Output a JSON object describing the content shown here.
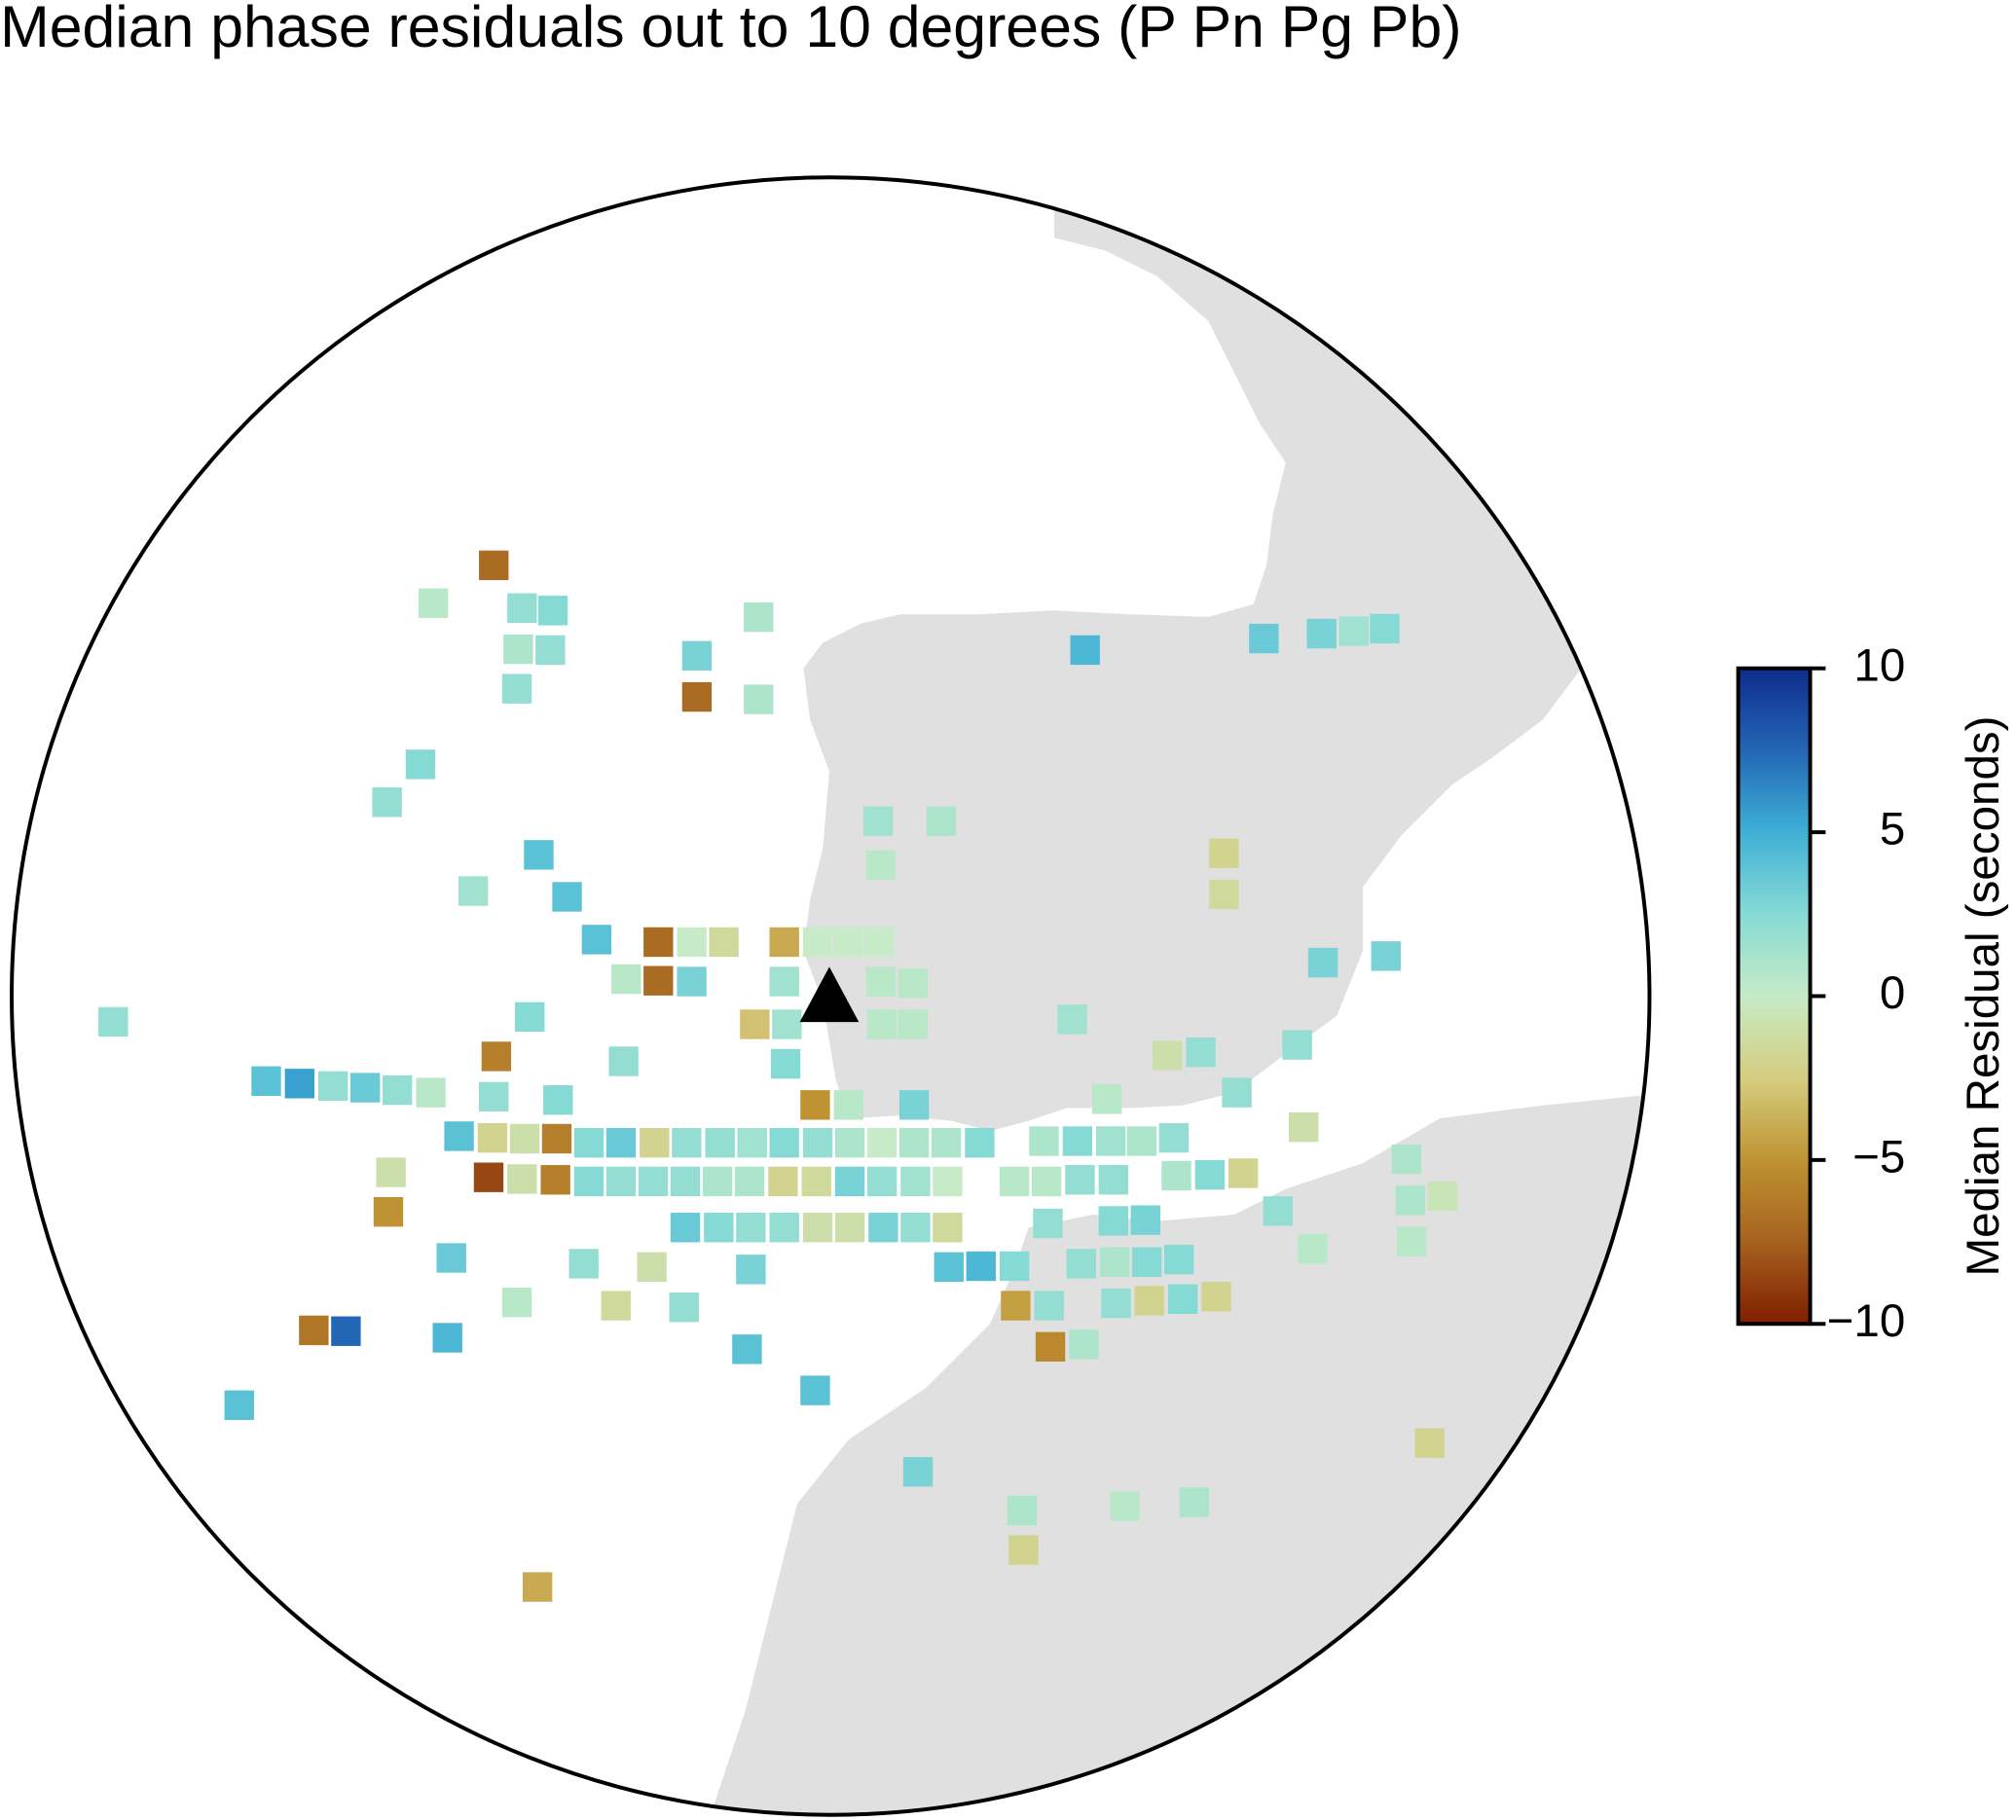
{
  "chart_data": {
    "type": "map",
    "title": "Median phase residuals out to 10 degrees (P Pn Pg Pb)",
    "station": {
      "lon": -9.1,
      "lat": 38.7
    },
    "colorbar": {
      "label": "Median Residual (seconds)",
      "lim": [
        -10,
        10
      ],
      "ticks": [
        10,
        5,
        0,
        {
          "value": -5,
          "label": "−5"
        },
        {
          "value": -10,
          "label": "−10"
        }
      ]
    },
    "colormap": [
      "#801e00",
      "#a5621f",
      "#bf9333",
      "#d5cd80",
      "#c6ebc6",
      "#86dad6",
      "#3fb0d5",
      "#2366b5",
      "#0e2d8c"
    ],
    "points": [
      {
        "lon": -14.32,
        "lat": 43.94,
        "value": -7
      },
      {
        "lon": -15.26,
        "lat": 43.48,
        "value": 0.5
      },
      {
        "lon": -13.88,
        "lat": 43.42,
        "value": 2
      },
      {
        "lon": -13.4,
        "lat": 43.39,
        "value": 2.5
      },
      {
        "lon": -10.2,
        "lat": 43.31,
        "value": 1
      },
      {
        "lon": -13.94,
        "lat": 42.92,
        "value": 1
      },
      {
        "lon": -13.44,
        "lat": 42.91,
        "value": 2
      },
      {
        "lon": -11.16,
        "lat": 42.84,
        "value": 3
      },
      {
        "lon": -13.96,
        "lat": 42.44,
        "value": 2
      },
      {
        "lon": -11.16,
        "lat": 42.34,
        "value": -7
      },
      {
        "lon": -10.2,
        "lat": 42.31,
        "value": 1
      },
      {
        "lon": -5.12,
        "lat": 42.91,
        "value": 4.5
      },
      {
        "lon": -2.34,
        "lat": 43.05,
        "value": 3.5
      },
      {
        "lon": -1.44,
        "lat": 43.11,
        "value": 3
      },
      {
        "lon": -0.94,
        "lat": 43.14,
        "value": 1.5
      },
      {
        "lon": -0.46,
        "lat": 43.17,
        "value": 2.5
      },
      {
        "lon": -15.46,
        "lat": 41.52,
        "value": 2.5
      },
      {
        "lon": -15.98,
        "lat": 41.06,
        "value": 2
      },
      {
        "lon": -8.34,
        "lat": 40.83,
        "value": 1.5
      },
      {
        "lon": -7.36,
        "lat": 40.83,
        "value": 1
      },
      {
        "lon": -13.62,
        "lat": 40.42,
        "value": 4
      },
      {
        "lon": -14.64,
        "lat": 39.98,
        "value": 1.5
      },
      {
        "lon": -13.18,
        "lat": 39.91,
        "value": 4
      },
      {
        "lon": -8.3,
        "lat": 40.3,
        "value": 0.5
      },
      {
        "lon": -2.96,
        "lat": 40.44,
        "value": -2
      },
      {
        "lon": -2.96,
        "lat": 39.94,
        "value": -1.5
      },
      {
        "lon": -12.72,
        "lat": 39.39,
        "value": 4
      },
      {
        "lon": -11.76,
        "lat": 39.36,
        "value": -7
      },
      {
        "lon": -11.24,
        "lat": 39.36,
        "value": 0
      },
      {
        "lon": -10.74,
        "lat": 39.36,
        "value": -1.5
      },
      {
        "lon": -9.8,
        "lat": 39.36,
        "value": -4
      },
      {
        "lon": -9.28,
        "lat": 39.36,
        "value": 0
      },
      {
        "lon": -8.8,
        "lat": 39.36,
        "value": 0
      },
      {
        "lon": -8.32,
        "lat": 39.36,
        "value": 0
      },
      {
        "lon": -12.26,
        "lat": 38.91,
        "value": 0.5
      },
      {
        "lon": -11.76,
        "lat": 38.89,
        "value": -7
      },
      {
        "lon": -11.24,
        "lat": 38.88,
        "value": 3
      },
      {
        "lon": -9.8,
        "lat": 38.88,
        "value": 1.5
      },
      {
        "lon": -8.3,
        "lat": 38.88,
        "value": 0.5
      },
      {
        "lon": -7.8,
        "lat": 38.86,
        "value": 0.5
      },
      {
        "lon": -1.42,
        "lat": 39.11,
        "value": 3
      },
      {
        "lon": -0.44,
        "lat": 39.19,
        "value": 3
      },
      {
        "lon": -20.24,
        "lat": 38.39,
        "value": 2
      },
      {
        "lon": -13.76,
        "lat": 38.45,
        "value": 2.5
      },
      {
        "lon": -10.26,
        "lat": 38.36,
        "value": -3
      },
      {
        "lon": -9.76,
        "lat": 38.36,
        "value": 1.5
      },
      {
        "lon": -8.28,
        "lat": 38.36,
        "value": 0.5
      },
      {
        "lon": -7.8,
        "lat": 38.36,
        "value": 0.5
      },
      {
        "lon": -5.32,
        "lat": 38.42,
        "value": 1.5
      },
      {
        "lon": -14.28,
        "lat": 37.97,
        "value": -6
      },
      {
        "lon": -12.3,
        "lat": 37.91,
        "value": 2
      },
      {
        "lon": -9.78,
        "lat": 37.88,
        "value": 2.5
      },
      {
        "lon": -3.84,
        "lat": 37.98,
        "value": -1
      },
      {
        "lon": -3.32,
        "lat": 38.02,
        "value": 2
      },
      {
        "lon": -1.82,
        "lat": 38.11,
        "value": 2
      },
      {
        "lon": -17.86,
        "lat": 37.67,
        "value": 4
      },
      {
        "lon": -17.34,
        "lat": 37.64,
        "value": 5.5
      },
      {
        "lon": -16.82,
        "lat": 37.61,
        "value": 2
      },
      {
        "lon": -16.32,
        "lat": 37.59,
        "value": 3.5
      },
      {
        "lon": -15.82,
        "lat": 37.56,
        "value": 2
      },
      {
        "lon": -15.3,
        "lat": 37.53,
        "value": 0.5
      },
      {
        "lon": -14.32,
        "lat": 37.48,
        "value": 2
      },
      {
        "lon": -13.32,
        "lat": 37.44,
        "value": 2.5
      },
      {
        "lon": -9.32,
        "lat": 37.38,
        "value": -5
      },
      {
        "lon": -8.8,
        "lat": 37.38,
        "value": 0.5
      },
      {
        "lon": -7.78,
        "lat": 37.38,
        "value": 3
      },
      {
        "lon": -4.78,
        "lat": 37.45,
        "value": 0.5
      },
      {
        "lon": -2.76,
        "lat": 37.53,
        "value": 2
      },
      {
        "lon": -14.86,
        "lat": 37.0,
        "value": 4
      },
      {
        "lon": -14.34,
        "lat": 36.98,
        "value": -2
      },
      {
        "lon": -13.84,
        "lat": 36.97,
        "value": -1
      },
      {
        "lon": -13.34,
        "lat": 36.97,
        "value": -6
      },
      {
        "lon": -12.84,
        "lat": 36.92,
        "value": 2.5
      },
      {
        "lon": -12.34,
        "lat": 36.92,
        "value": 3.5
      },
      {
        "lon": -11.82,
        "lat": 36.92,
        "value": -2
      },
      {
        "lon": -11.32,
        "lat": 36.92,
        "value": 2
      },
      {
        "lon": -10.8,
        "lat": 36.92,
        "value": 2
      },
      {
        "lon": -10.3,
        "lat": 36.92,
        "value": 1.5
      },
      {
        "lon": -9.8,
        "lat": 36.92,
        "value": 2.5
      },
      {
        "lon": -9.28,
        "lat": 36.92,
        "value": 2
      },
      {
        "lon": -8.78,
        "lat": 36.92,
        "value": 1
      },
      {
        "lon": -8.28,
        "lat": 36.92,
        "value": 0
      },
      {
        "lon": -7.78,
        "lat": 36.92,
        "value": 1
      },
      {
        "lon": -7.28,
        "lat": 36.92,
        "value": 1
      },
      {
        "lon": -6.76,
        "lat": 36.92,
        "value": 2.5
      },
      {
        "lon": -5.76,
        "lat": 36.94,
        "value": 1
      },
      {
        "lon": -5.24,
        "lat": 36.94,
        "value": 2.5
      },
      {
        "lon": -4.72,
        "lat": 36.94,
        "value": 1.5
      },
      {
        "lon": -4.24,
        "lat": 36.94,
        "value": 1
      },
      {
        "lon": -3.74,
        "lat": 36.98,
        "value": 2
      },
      {
        "lon": -1.72,
        "lat": 37.11,
        "value": -1
      },
      {
        "lon": -15.92,
        "lat": 36.56,
        "value": -1
      },
      {
        "lon": -14.4,
        "lat": 36.5,
        "value": -8.5
      },
      {
        "lon": -13.88,
        "lat": 36.48,
        "value": -1
      },
      {
        "lon": -13.36,
        "lat": 36.47,
        "value": -6
      },
      {
        "lon": -12.84,
        "lat": 36.45,
        "value": 2.5
      },
      {
        "lon": -12.34,
        "lat": 36.45,
        "value": 2
      },
      {
        "lon": -11.84,
        "lat": 36.45,
        "value": 2
      },
      {
        "lon": -11.34,
        "lat": 36.45,
        "value": 2
      },
      {
        "lon": -10.84,
        "lat": 36.45,
        "value": 1
      },
      {
        "lon": -10.34,
        "lat": 36.45,
        "value": 1
      },
      {
        "lon": -9.82,
        "lat": 36.45,
        "value": -2
      },
      {
        "lon": -9.3,
        "lat": 36.45,
        "value": -1.5
      },
      {
        "lon": -8.78,
        "lat": 36.45,
        "value": 3
      },
      {
        "lon": -8.28,
        "lat": 36.45,
        "value": 2
      },
      {
        "lon": -7.76,
        "lat": 36.45,
        "value": 1.5
      },
      {
        "lon": -7.26,
        "lat": 36.45,
        "value": 0
      },
      {
        "lon": -6.22,
        "lat": 36.45,
        "value": 0.5
      },
      {
        "lon": -5.72,
        "lat": 36.45,
        "value": 0.5
      },
      {
        "lon": -5.2,
        "lat": 36.47,
        "value": 2
      },
      {
        "lon": -4.68,
        "lat": 36.47,
        "value": 2
      },
      {
        "lon": -3.7,
        "lat": 36.52,
        "value": 1
      },
      {
        "lon": -3.18,
        "lat": 36.53,
        "value": 2.5
      },
      {
        "lon": -2.66,
        "lat": 36.55,
        "value": -2
      },
      {
        "lon": -0.12,
        "lat": 36.72,
        "value": 1
      },
      {
        "lon": -15.96,
        "lat": 36.08,
        "value": -5
      },
      {
        "lon": -11.34,
        "lat": 35.89,
        "value": 3.5
      },
      {
        "lon": -10.82,
        "lat": 35.89,
        "value": 2.5
      },
      {
        "lon": -10.32,
        "lat": 35.89,
        "value": 2
      },
      {
        "lon": -9.8,
        "lat": 35.89,
        "value": 2
      },
      {
        "lon": -9.28,
        "lat": 35.89,
        "value": -1
      },
      {
        "lon": -8.78,
        "lat": 35.89,
        "value": -1
      },
      {
        "lon": -8.26,
        "lat": 35.89,
        "value": 3
      },
      {
        "lon": -7.76,
        "lat": 35.89,
        "value": 2
      },
      {
        "lon": -7.26,
        "lat": 35.89,
        "value": -1.5
      },
      {
        "lon": -5.7,
        "lat": 35.94,
        "value": 2
      },
      {
        "lon": -4.68,
        "lat": 35.97,
        "value": 2.5
      },
      {
        "lon": -4.18,
        "lat": 35.98,
        "value": 3
      },
      {
        "lon": -2.12,
        "lat": 36.09,
        "value": 2
      },
      {
        "lon": -0.06,
        "lat": 36.22,
        "value": 1
      },
      {
        "lon": 0.44,
        "lat": 36.27,
        "value": -0.5
      },
      {
        "lon": -1.58,
        "lat": 35.63,
        "value": 0.5
      },
      {
        "lon": -0.04,
        "lat": 35.72,
        "value": 0.5
      },
      {
        "lon": -14.98,
        "lat": 35.52,
        "value": 3.5
      },
      {
        "lon": -12.92,
        "lat": 35.45,
        "value": 2
      },
      {
        "lon": -11.86,
        "lat": 35.41,
        "value": -1
      },
      {
        "lon": -10.32,
        "lat": 35.38,
        "value": 3
      },
      {
        "lon": -7.24,
        "lat": 35.41,
        "value": 4
      },
      {
        "lon": -6.74,
        "lat": 35.42,
        "value": 4.5
      },
      {
        "lon": -6.22,
        "lat": 35.42,
        "value": 2.5
      },
      {
        "lon": -5.18,
        "lat": 35.45,
        "value": 2
      },
      {
        "lon": -4.66,
        "lat": 35.47,
        "value": 1
      },
      {
        "lon": -4.16,
        "lat": 35.47,
        "value": 2.5
      },
      {
        "lon": -3.66,
        "lat": 35.5,
        "value": 2.5
      },
      {
        "lon": -13.96,
        "lat": 34.98,
        "value": 0.5
      },
      {
        "lon": -12.42,
        "lat": 34.94,
        "value": -1.5
      },
      {
        "lon": -11.36,
        "lat": 34.92,
        "value": 2
      },
      {
        "lon": -6.2,
        "lat": 34.94,
        "value": -4.5
      },
      {
        "lon": -5.68,
        "lat": 34.94,
        "value": 2
      },
      {
        "lon": -4.64,
        "lat": 34.97,
        "value": 2
      },
      {
        "lon": -4.12,
        "lat": 35.0,
        "value": -2
      },
      {
        "lon": -3.6,
        "lat": 35.02,
        "value": 2.5
      },
      {
        "lon": -3.08,
        "lat": 35.05,
        "value": -2
      },
      {
        "lon": -17.12,
        "lat": 34.64,
        "value": -6.5
      },
      {
        "lon": -16.62,
        "lat": 34.63,
        "value": 7.5
      },
      {
        "lon": -15.04,
        "lat": 34.55,
        "value": 4.5
      },
      {
        "lon": -10.38,
        "lat": 34.41,
        "value": 4
      },
      {
        "lon": -5.66,
        "lat": 34.44,
        "value": -5.5
      },
      {
        "lon": -5.14,
        "lat": 34.47,
        "value": 1
      },
      {
        "lon": -9.32,
        "lat": 33.91,
        "value": 4
      },
      {
        "lon": -18.28,
        "lat": 33.73,
        "value": 4
      },
      {
        "lon": 0.24,
        "lat": 33.27,
        "value": -2
      },
      {
        "lon": -7.72,
        "lat": 32.92,
        "value": 3
      },
      {
        "lon": -6.1,
        "lat": 32.45,
        "value": 1
      },
      {
        "lon": -4.5,
        "lat": 32.5,
        "value": 0.5
      },
      {
        "lon": -3.42,
        "lat": 32.55,
        "value": 1
      },
      {
        "lon": -6.08,
        "lat": 31.97,
        "value": -2
      },
      {
        "lon": -13.64,
        "lat": 31.52,
        "value": -4
      }
    ]
  }
}
